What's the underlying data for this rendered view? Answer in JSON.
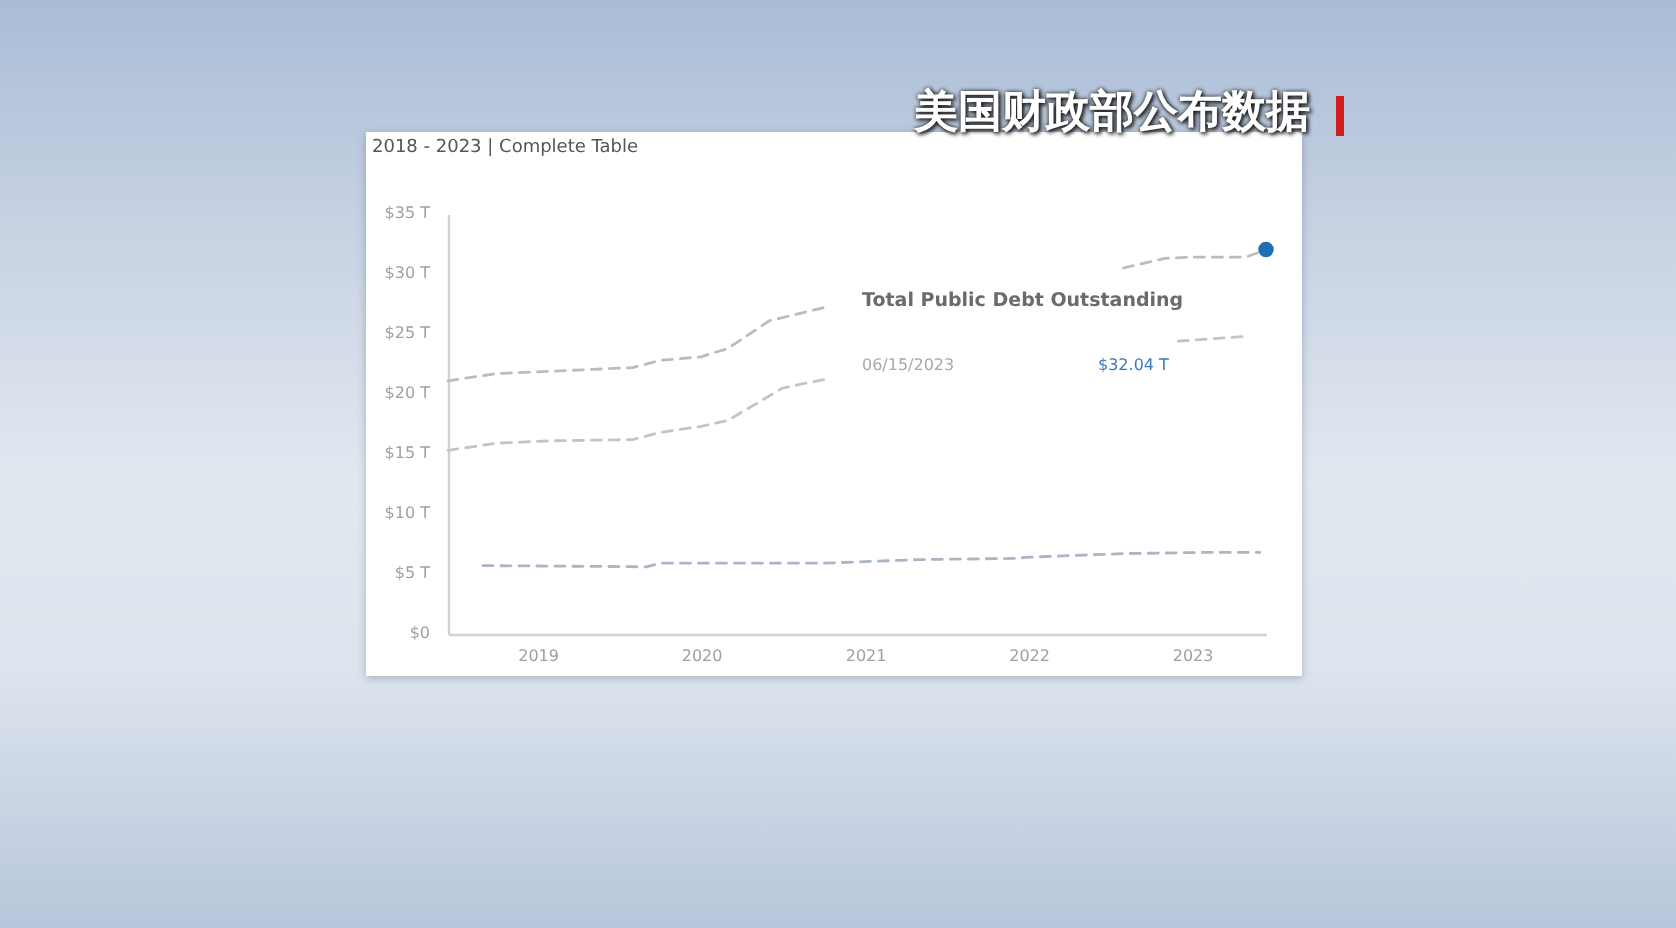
{
  "chart_data": {
    "type": "line",
    "title": "2018 - 2023 | Complete Table",
    "annotations": [
      "美国财政部公布数据",
      "Total Public Debt Outstanding",
      "06/15/2023",
      "$32.04 T"
    ],
    "xlim": [
      "2018-06-15",
      "2023-06-15"
    ],
    "xticks": [
      "2019",
      "2020",
      "2021",
      "2022",
      "2023"
    ],
    "ylim": [
      0,
      35
    ],
    "yticks": [
      {
        "value": 0,
        "label": "$0"
      },
      {
        "value": 5,
        "label": "$5 T"
      },
      {
        "value": 10,
        "label": "$10 T"
      },
      {
        "value": 15,
        "label": "$15 T"
      },
      {
        "value": 20,
        "label": "$20 T"
      },
      {
        "value": 25,
        "label": "$25 T"
      },
      {
        "value": 30,
        "label": "$30 T"
      },
      {
        "value": 35,
        "label": "$35 T"
      }
    ],
    "line_style": "dashed",
    "series": [
      {
        "color": "#bcbcbc",
        "x": [
          "2018-06-15",
          "2018-10",
          "2019-02",
          "2019-08",
          "2019-10",
          "2020-01",
          "2020-03",
          "2020-06",
          "2020-10",
          "2021-09",
          "2022-08",
          "2022-11",
          "2023-01",
          "2023-05",
          "2023-06-15"
        ],
        "values": [
          21.1,
          21.7,
          21.9,
          22.2,
          22.8,
          23.1,
          23.8,
          26.1,
          27.2,
          null,
          30.5,
          31.3,
          31.4,
          31.4,
          32.04
        ]
      },
      {
        "color": "#c4c4c4",
        "x": [
          "2018-06-15",
          "2018-10",
          "2019-02",
          "2019-08",
          "2019-10",
          "2020-01",
          "2020-03",
          "2020-07",
          "2020-10",
          "2021-09",
          "2022-12",
          "2023-05"
        ],
        "values": [
          15.3,
          15.9,
          16.1,
          16.2,
          16.8,
          17.3,
          17.8,
          20.5,
          21.2,
          null,
          24.4,
          24.8
        ]
      },
      {
        "color": "#aab5c6",
        "x": [
          "2018-09",
          "2019-09",
          "2019-10",
          "2020-03",
          "2020-10",
          "2021-05",
          "2021-12",
          "2022-01",
          "2022-08",
          "2023-02",
          "2023-06"
        ],
        "values": [
          5.7,
          5.6,
          5.9,
          5.9,
          5.9,
          6.2,
          6.3,
          6.4,
          6.7,
          6.8,
          6.8
        ]
      },
      {
        "type": "scatter",
        "color": "#1f6fb4",
        "x": [
          "2023-06-15"
        ],
        "values": [
          32.04
        ]
      }
    ]
  }
}
